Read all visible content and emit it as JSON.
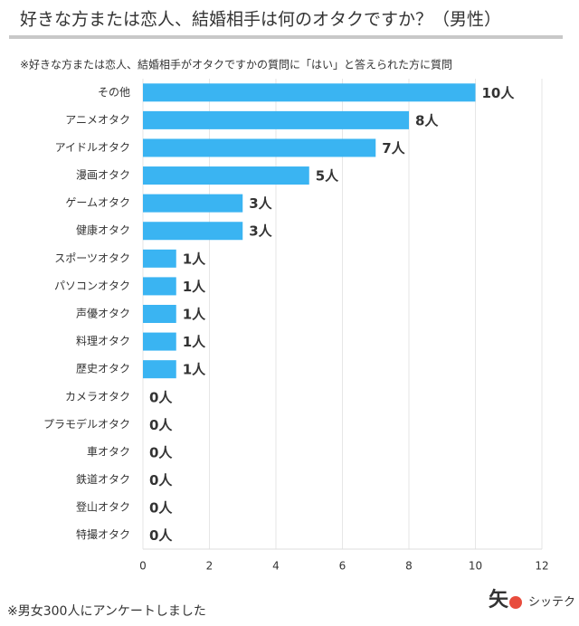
{
  "chart_data": {
    "type": "bar",
    "orientation": "horizontal",
    "title": "好きな方または恋人、結婚相手は何のオタクですか？（男性）",
    "subtitle": "※好きな方または恋人、結婚相手がオタクですかの質問に「はい」と答えられた方に質問",
    "footnote": "※男女300人にアンケートしました",
    "logo_mark": "矢",
    "logo": "シッテク",
    "categories": [
      "その他",
      "アニメオタク",
      "アイドルオタク",
      "漫画オタク",
      "ゲームオタク",
      "健康オタク",
      "スポーツオタク",
      "パソコンオタク",
      "声優オタク",
      "料理オタク",
      "歴史オタク",
      "カメラオタク",
      "プラモデルオタク",
      "車オタク",
      "鉄道オタク",
      "登山オタク",
      "特撮オタク"
    ],
    "values": [
      10,
      8,
      7,
      5,
      3,
      3,
      1,
      1,
      1,
      1,
      1,
      0,
      0,
      0,
      0,
      0,
      0
    ],
    "value_labels": [
      "10人",
      "8人",
      "7人",
      "5人",
      "3人",
      "3人",
      "1人",
      "1人",
      "1人",
      "1人",
      "1人",
      "0人",
      "0人",
      "0人",
      "0人",
      "0人",
      "0人"
    ],
    "color": "#3ab4f2",
    "xlim": [
      0,
      12
    ],
    "xticks": [
      0,
      2,
      4,
      6,
      8,
      10,
      12
    ],
    "grid": true
  }
}
